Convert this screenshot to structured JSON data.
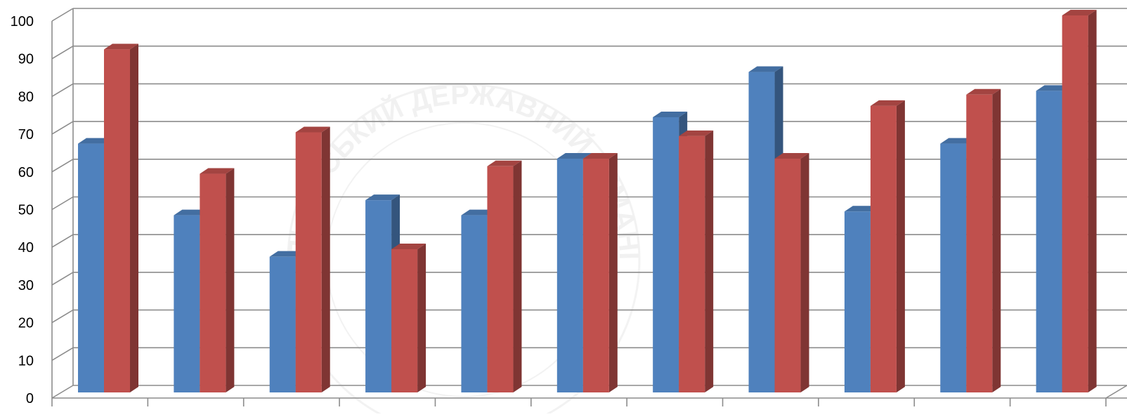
{
  "chart_data": {
    "type": "bar",
    "title": "",
    "xlabel": "",
    "ylabel": "",
    "ylim": [
      0,
      100
    ],
    "yticks": [
      0,
      10,
      20,
      30,
      40,
      50,
      60,
      70,
      80,
      90,
      100
    ],
    "grid": true,
    "legend": "none",
    "categories": [
      "",
      "",
      "",
      "",
      "",
      "",
      "",
      "",
      "",
      "",
      ""
    ],
    "series": [
      {
        "color": "#4F81BD",
        "values": [
          66,
          47,
          36,
          51,
          47,
          62,
          73,
          85,
          48,
          66,
          80
        ]
      },
      {
        "color": "#C0504D",
        "values": [
          91,
          58,
          69,
          38,
          60,
          62,
          68,
          62,
          76,
          79,
          100
        ]
      }
    ]
  },
  "watermark": {
    "text": "ЛЬВІВСЬКИЙ ДЕРЖАВНИЙ ГУМАНІТАРНИЙ УНІВЕРСИТЕТ"
  }
}
